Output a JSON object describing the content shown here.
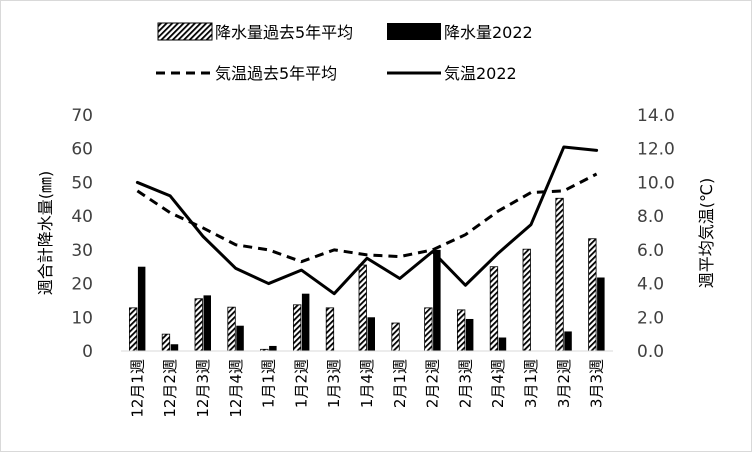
{
  "chart_data": {
    "type": "bar-line-combo",
    "categories": [
      "12月1週",
      "12月2週",
      "12月3週",
      "12月4週",
      "1月1週",
      "1月2週",
      "1月3週",
      "1月4週",
      "2月1週",
      "2月2週",
      "2月3週",
      "2月4週",
      "3月1週",
      "3月2週",
      "3月3週"
    ],
    "bar_series": [
      {
        "name": "降水量過去5年平均",
        "pattern": "diagonal-hatch",
        "values": [
          12.8,
          5.0,
          15.5,
          13.0,
          0.5,
          13.7,
          12.8,
          25.5,
          8.3,
          12.8,
          12.2,
          25.0,
          30.2,
          45.3,
          33.3
        ]
      },
      {
        "name": "降水量2022",
        "color": "#000000",
        "values": [
          25.0,
          2.0,
          16.5,
          7.5,
          1.5,
          17.0,
          0.0,
          10.0,
          0.0,
          30.0,
          9.5,
          4.0,
          0.0,
          5.8,
          21.8
        ]
      }
    ],
    "line_series": [
      {
        "name": "気温過去5年平均",
        "style": "dashed",
        "color": "#000000",
        "values": [
          9.5,
          8.2,
          7.3,
          6.3,
          6.0,
          5.3,
          6.0,
          5.7,
          5.6,
          6.0,
          6.9,
          8.3,
          9.4,
          9.5,
          10.5
        ]
      },
      {
        "name": "気温2022",
        "style": "solid",
        "color": "#000000",
        "values": [
          10.0,
          9.2,
          6.8,
          4.9,
          4.0,
          4.8,
          3.4,
          5.5,
          4.3,
          5.9,
          3.9,
          5.8,
          7.5,
          12.1,
          11.9
        ]
      }
    ],
    "y_left": {
      "label": "週合計降水量(㎜)",
      "min": 0,
      "max": 70,
      "step": 10,
      "tick_labels": [
        "0",
        "10",
        "20",
        "30",
        "40",
        "50",
        "60",
        "70"
      ]
    },
    "y_right": {
      "label": "週平均気温(℃)",
      "min": 0,
      "max": 14,
      "step": 2,
      "tick_labels": [
        "0.0",
        "2.0",
        "4.0",
        "6.0",
        "8.0",
        "10.0",
        "12.0",
        "14.0"
      ]
    },
    "grid": false,
    "legend_position": "top"
  }
}
